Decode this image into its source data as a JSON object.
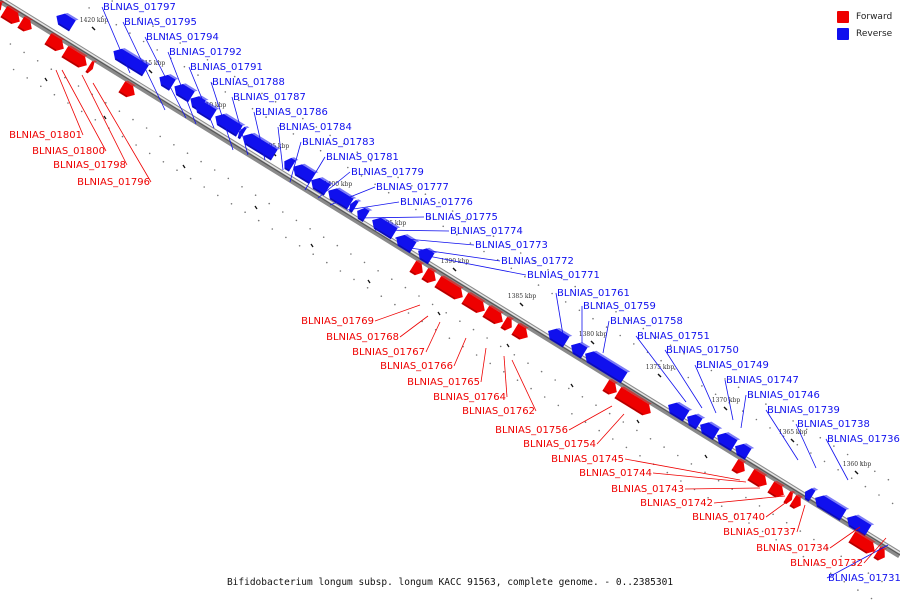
{
  "legend": {
    "forward": {
      "label": "Forward",
      "color": "#ee0000"
    },
    "reverse": {
      "label": "Reverse",
      "color": "#1010ee"
    }
  },
  "caption": "Bifidobacterium longum subsp. longum KACC 91563, complete genome. - 0..2385301",
  "ticks": [
    "1420 kbp",
    "1415 kbp",
    "1410 kbp",
    "1405 kbp",
    "1400 kbp",
    "1395 kbp",
    "1390 kbp",
    "1385 kbp",
    "1380 kbp",
    "1375 kbp",
    "1370 kbp",
    "1365 kbp",
    "1360 kbp"
  ],
  "genes": [
    {
      "name": "BLNIAS_01797",
      "strand": "reverse"
    },
    {
      "name": "BLNIAS_01795",
      "strand": "reverse"
    },
    {
      "name": "BLNIAS_01794",
      "strand": "reverse"
    },
    {
      "name": "BLNIAS_01792",
      "strand": "reverse"
    },
    {
      "name": "BLNIAS_01791",
      "strand": "reverse"
    },
    {
      "name": "BLNIAS_01788",
      "strand": "reverse"
    },
    {
      "name": "BLNIAS_01787",
      "strand": "reverse"
    },
    {
      "name": "BLNIAS_01786",
      "strand": "reverse"
    },
    {
      "name": "BLNIAS_01784",
      "strand": "reverse"
    },
    {
      "name": "BLNIAS_01783",
      "strand": "reverse"
    },
    {
      "name": "BLNIAS_01781",
      "strand": "reverse"
    },
    {
      "name": "BLNIAS_01779",
      "strand": "reverse"
    },
    {
      "name": "BLNIAS_01777",
      "strand": "reverse"
    },
    {
      "name": "BLNIAS_01776",
      "strand": "reverse"
    },
    {
      "name": "BLNIAS_01775",
      "strand": "reverse"
    },
    {
      "name": "BLNIAS_01774",
      "strand": "reverse"
    },
    {
      "name": "BLNIAS_01773",
      "strand": "reverse"
    },
    {
      "name": "BLNIAS_01772",
      "strand": "reverse"
    },
    {
      "name": "BLNIAS_01771",
      "strand": "reverse"
    },
    {
      "name": "BLNIAS_01761",
      "strand": "reverse"
    },
    {
      "name": "BLNIAS_01759",
      "strand": "reverse"
    },
    {
      "name": "BLNIAS_01758",
      "strand": "reverse"
    },
    {
      "name": "BLNIAS_01751",
      "strand": "reverse"
    },
    {
      "name": "BLNIAS_01750",
      "strand": "reverse"
    },
    {
      "name": "BLNIAS_01749",
      "strand": "reverse"
    },
    {
      "name": "BLNIAS_01747",
      "strand": "reverse"
    },
    {
      "name": "BLNIAS_01746",
      "strand": "reverse"
    },
    {
      "name": "BLNIAS_01739",
      "strand": "reverse"
    },
    {
      "name": "BLNIAS_01738",
      "strand": "reverse"
    },
    {
      "name": "BLNIAS_01736",
      "strand": "reverse"
    },
    {
      "name": "BLNIAS_01731",
      "strand": "reverse"
    },
    {
      "name": "BLNIAS_01801",
      "strand": "forward"
    },
    {
      "name": "BLNIAS_01800",
      "strand": "forward"
    },
    {
      "name": "BLNIAS_01798",
      "strand": "forward"
    },
    {
      "name": "BLNIAS_01796",
      "strand": "forward"
    },
    {
      "name": "BLNIAS_01769",
      "strand": "forward"
    },
    {
      "name": "BLNIAS_01768",
      "strand": "forward"
    },
    {
      "name": "BLNIAS_01767",
      "strand": "forward"
    },
    {
      "name": "BLNIAS_01766",
      "strand": "forward"
    },
    {
      "name": "BLNIAS_01765",
      "strand": "forward"
    },
    {
      "name": "BLNIAS_01764",
      "strand": "forward"
    },
    {
      "name": "BLNIAS_01762",
      "strand": "forward"
    },
    {
      "name": "BLNIAS_01756",
      "strand": "forward"
    },
    {
      "name": "BLNIAS_01754",
      "strand": "forward"
    },
    {
      "name": "BLNIAS_01745",
      "strand": "forward"
    },
    {
      "name": "BLNIAS_01744",
      "strand": "forward"
    },
    {
      "name": "BLNIAS_01743",
      "strand": "forward"
    },
    {
      "name": "BLNIAS_01742",
      "strand": "forward"
    },
    {
      "name": "BLNIAS_01740",
      "strand": "forward"
    },
    {
      "name": "BLNIAS_01737",
      "strand": "forward"
    },
    {
      "name": "BLNIAS_01734",
      "strand": "forward"
    },
    {
      "name": "BLNIAS_01732",
      "strand": "forward"
    }
  ]
}
